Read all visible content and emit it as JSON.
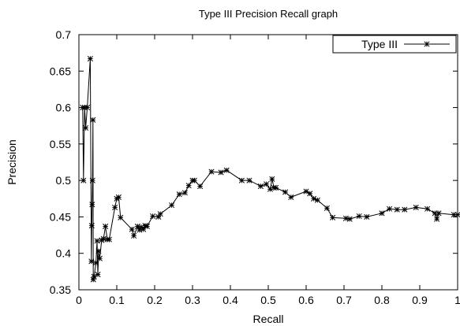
{
  "chart_data": {
    "type": "line",
    "title": "Type III Precision  Recall graph",
    "xlabel": "Recall",
    "ylabel": "Precision",
    "xlim": [
      0,
      1
    ],
    "ylim": [
      0.35,
      0.7
    ],
    "xticks": [
      "0",
      "0.1",
      "0.2",
      "0.3",
      "0.4",
      "0.5",
      "0.6",
      "0.7",
      "0.8",
      "0.9",
      "1"
    ],
    "yticks": [
      "0.35",
      "0.4",
      "0.45",
      "0.5",
      "0.55",
      "0.6",
      "0.65",
      "0.7"
    ],
    "grid": false,
    "legend_position": "top-right",
    "series": [
      {
        "name": "Type III",
        "color": "#000000",
        "marker": "asterisk",
        "points": [
          [
            0.01,
            0.6
          ],
          [
            0.012,
            0.5
          ],
          [
            0.015,
            0.6
          ],
          [
            0.018,
            0.572
          ],
          [
            0.022,
            0.6
          ],
          [
            0.03,
            0.667
          ],
          [
            0.033,
            0.389
          ],
          [
            0.034,
            0.438
          ],
          [
            0.035,
            0.467
          ],
          [
            0.036,
            0.5
          ],
          [
            0.037,
            0.583
          ],
          [
            0.038,
            0.364
          ],
          [
            0.04,
            0.368
          ],
          [
            0.045,
            0.387
          ],
          [
            0.048,
            0.417
          ],
          [
            0.05,
            0.371
          ],
          [
            0.052,
            0.403
          ],
          [
            0.055,
            0.393
          ],
          [
            0.06,
            0.418
          ],
          [
            0.065,
            0.42
          ],
          [
            0.07,
            0.437
          ],
          [
            0.075,
            0.419
          ],
          [
            0.08,
            0.419
          ],
          [
            0.095,
            0.463
          ],
          [
            0.1,
            0.475
          ],
          [
            0.105,
            0.477
          ],
          [
            0.11,
            0.449
          ],
          [
            0.14,
            0.433
          ],
          [
            0.145,
            0.424
          ],
          [
            0.155,
            0.437
          ],
          [
            0.16,
            0.432
          ],
          [
            0.165,
            0.436
          ],
          [
            0.17,
            0.433
          ],
          [
            0.175,
            0.438
          ],
          [
            0.18,
            0.437
          ],
          [
            0.195,
            0.451
          ],
          [
            0.21,
            0.45
          ],
          [
            0.215,
            0.454
          ],
          [
            0.245,
            0.466
          ],
          [
            0.265,
            0.481
          ],
          [
            0.28,
            0.483
          ],
          [
            0.29,
            0.493
          ],
          [
            0.3,
            0.5
          ],
          [
            0.305,
            0.5
          ],
          [
            0.32,
            0.492
          ],
          [
            0.35,
            0.512
          ],
          [
            0.375,
            0.511
          ],
          [
            0.39,
            0.514
          ],
          [
            0.43,
            0.5
          ],
          [
            0.45,
            0.5
          ],
          [
            0.48,
            0.492
          ],
          [
            0.495,
            0.495
          ],
          [
            0.505,
            0.488
          ],
          [
            0.51,
            0.502
          ],
          [
            0.515,
            0.49
          ],
          [
            0.52,
            0.49
          ],
          [
            0.545,
            0.484
          ],
          [
            0.56,
            0.477
          ],
          [
            0.6,
            0.485
          ],
          [
            0.61,
            0.482
          ],
          [
            0.62,
            0.475
          ],
          [
            0.63,
            0.473
          ],
          [
            0.655,
            0.462
          ],
          [
            0.67,
            0.449
          ],
          [
            0.705,
            0.448
          ],
          [
            0.715,
            0.447
          ],
          [
            0.74,
            0.451
          ],
          [
            0.76,
            0.45
          ],
          [
            0.8,
            0.455
          ],
          [
            0.82,
            0.461
          ],
          [
            0.84,
            0.46
          ],
          [
            0.86,
            0.46
          ],
          [
            0.89,
            0.463
          ],
          [
            0.92,
            0.461
          ],
          [
            0.94,
            0.455
          ],
          [
            0.945,
            0.447
          ],
          [
            0.95,
            0.455
          ],
          [
            0.99,
            0.453
          ],
          [
            1.0,
            0.453
          ]
        ]
      }
    ]
  }
}
